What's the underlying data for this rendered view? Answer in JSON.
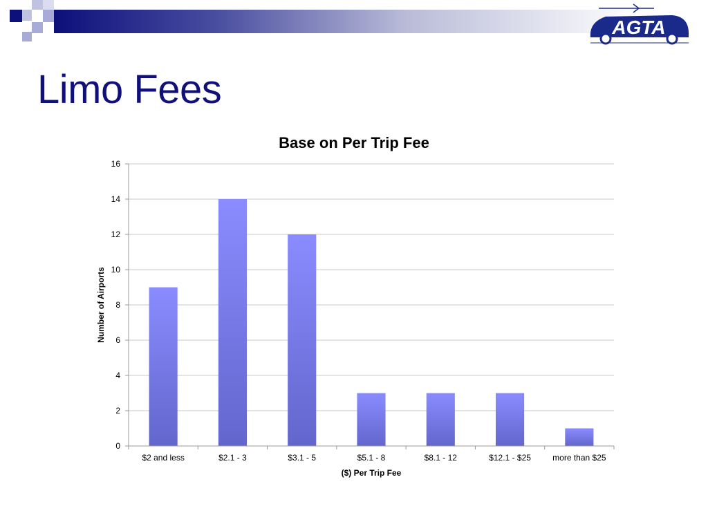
{
  "slide": {
    "title": "Limo Fees"
  },
  "logo": {
    "text": "AGTA",
    "brand_color": "#1a2a8a"
  },
  "colors": {
    "title": "#10107a",
    "bar_top": "#8a8cff",
    "bar_bottom": "#6266cc",
    "grid": "#c8c8c8",
    "header_dark": "#0d0f7a"
  },
  "chart_data": {
    "type": "bar",
    "title": "Base on Per Trip Fee",
    "xlabel": "($) Per Trip Fee",
    "ylabel": "Number of Airports",
    "categories": [
      "$2 and less",
      "$2.1 - 3",
      "$3.1 - 5",
      "$5.1 - 8",
      "$8.1 - 12",
      "$12.1 - $25",
      "more than $25"
    ],
    "values": [
      9,
      14,
      12,
      3,
      3,
      3,
      1
    ],
    "ylim": [
      0,
      16
    ],
    "yticks": [
      "0",
      "2",
      "4",
      "6",
      "8",
      "10",
      "12",
      "14",
      "16"
    ],
    "grid": true,
    "legend": "none"
  }
}
